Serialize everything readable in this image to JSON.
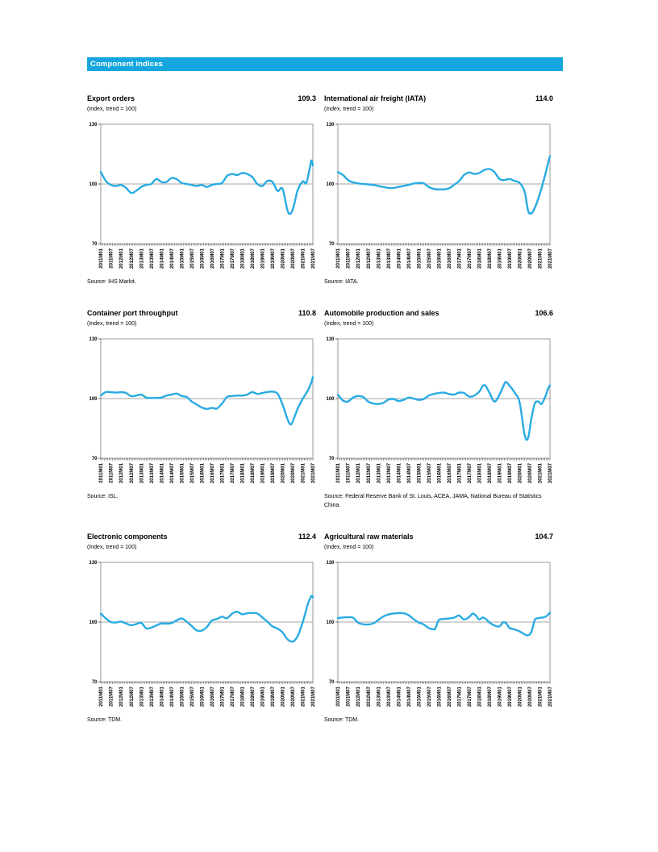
{
  "header": {
    "title": "Component indices",
    "bar_color": "#16A6DF",
    "text_color": "#FFFFFF"
  },
  "colors": {
    "line": "#29ABE2",
    "grid": "#8A8A8A",
    "box": "#9A9A9A",
    "tick": "#3F3F3F"
  },
  "chart_data": {
    "type": "line",
    "axis": {
      "ylim": [
        70,
        130
      ],
      "yticks": [
        130,
        100,
        70
      ],
      "reference_line": 100,
      "x_start": 2011.0,
      "x_end": 2021.5,
      "minor_ticks_monthly": true,
      "x_tick_labels": [
        "2011M01",
        "2011M07",
        "2012M01",
        "2012M07",
        "2013M01",
        "2013M07",
        "2014M01",
        "2014M07",
        "2015M01",
        "2015M07",
        "2016M01",
        "2016M07",
        "2017M01",
        "2017M07",
        "2018M01",
        "2018M07",
        "2019M01",
        "2019M07",
        "2020M01",
        "2020M07",
        "2021M01",
        "2021M07"
      ]
    },
    "charts": [
      {
        "title": "Export orders",
        "value": "109.3",
        "subtitle": "(Index, trend = 100)",
        "source": "Source:  IHS Markit.",
        "x": [
          2011.0,
          2011.25,
          2011.5,
          2011.75,
          2012.0,
          2012.25,
          2012.5,
          2012.75,
          2013.0,
          2013.25,
          2013.5,
          2013.75,
          2014.0,
          2014.25,
          2014.5,
          2014.75,
          2015.0,
          2015.25,
          2015.5,
          2015.75,
          2016.0,
          2016.25,
          2016.5,
          2016.75,
          2017.0,
          2017.25,
          2017.5,
          2017.75,
          2018.0,
          2018.25,
          2018.5,
          2018.75,
          2019.0,
          2019.25,
          2019.5,
          2019.75,
          2020.0,
          2020.25,
          2020.42,
          2020.58,
          2020.75,
          2021.0,
          2021.17,
          2021.33,
          2021.42,
          2021.5
        ],
        "y": [
          106,
          101.5,
          99.5,
          99,
          99.5,
          98,
          95.5,
          96.5,
          98.5,
          99.5,
          100,
          102.5,
          101,
          101,
          103,
          102.5,
          100.5,
          100,
          99.5,
          99,
          99.5,
          98.5,
          99.5,
          100,
          100.5,
          104,
          105,
          104.5,
          105.5,
          105,
          103.5,
          100,
          99,
          101.5,
          101,
          96.5,
          97.5,
          86.5,
          85.3,
          90,
          97,
          101.3,
          100.4,
          107,
          111.8,
          109.3
        ]
      },
      {
        "title": "International air freight (IATA)",
        "value": "114.0",
        "subtitle": "(Index, trend = 100)",
        "source": "Source: IATA.",
        "x": [
          2011.0,
          2011.25,
          2011.5,
          2011.75,
          2012.0,
          2012.25,
          2012.5,
          2012.75,
          2013.0,
          2013.25,
          2013.5,
          2013.75,
          2014.0,
          2014.25,
          2014.5,
          2014.75,
          2015.0,
          2015.25,
          2015.5,
          2015.75,
          2016.0,
          2016.25,
          2016.5,
          2016.75,
          2017.0,
          2017.25,
          2017.5,
          2017.75,
          2018.0,
          2018.25,
          2018.5,
          2018.75,
          2019.0,
          2019.25,
          2019.5,
          2019.75,
          2020.0,
          2020.25,
          2020.42,
          2020.58,
          2020.75,
          2021.0,
          2021.25,
          2021.42,
          2021.5
        ],
        "y": [
          106,
          104.5,
          102,
          100.8,
          100.3,
          100,
          99.8,
          99.5,
          99,
          98.5,
          98,
          98,
          98.5,
          99,
          99.5,
          100.2,
          100.5,
          100.3,
          98.5,
          97.5,
          97.3,
          97.3,
          97.8,
          99.5,
          101.5,
          104.5,
          105.8,
          105,
          105.5,
          107,
          107.5,
          106,
          102.5,
          102,
          102.5,
          101.5,
          100.5,
          96,
          86.5,
          85.3,
          88,
          95,
          104,
          111,
          114
        ]
      },
      {
        "title": "Container port throughput",
        "value": "110.8",
        "subtitle": "(Index, trend = 100)",
        "source": "Source: ISL.",
        "x": [
          2011.0,
          2011.25,
          2011.5,
          2011.75,
          2012.0,
          2012.25,
          2012.5,
          2012.75,
          2013.0,
          2013.25,
          2013.5,
          2013.75,
          2014.0,
          2014.25,
          2014.5,
          2014.75,
          2015.0,
          2015.25,
          2015.5,
          2015.75,
          2016.0,
          2016.25,
          2016.5,
          2016.75,
          2017.0,
          2017.25,
          2017.5,
          2017.75,
          2018.0,
          2018.25,
          2018.5,
          2018.75,
          2019.0,
          2019.25,
          2019.5,
          2019.75,
          2020.0,
          2020.25,
          2020.42,
          2020.58,
          2020.75,
          2021.0,
          2021.25,
          2021.42,
          2021.5
        ],
        "y": [
          101.5,
          103.3,
          103.2,
          103,
          103.2,
          102.8,
          101.2,
          101.5,
          102,
          100.5,
          100.3,
          100.3,
          100.5,
          101.5,
          102,
          102.5,
          101.3,
          100.8,
          98.5,
          97,
          95.5,
          94.8,
          95.3,
          95,
          97.5,
          100.8,
          101.3,
          101.5,
          101.5,
          102,
          103.3,
          102.3,
          102.8,
          103.3,
          103.5,
          102.5,
          97,
          89.5,
          87,
          90.5,
          95,
          100,
          104,
          108,
          110.8
        ]
      },
      {
        "title": "Automobile production and sales",
        "value": "106.6",
        "subtitle": "(Index, trend = 100)",
        "source": "Source: Federal Reserve Bank of St. Louis, ACEA, JAMA, National Bureau of Statistics China.",
        "x": [
          2011.0,
          2011.25,
          2011.5,
          2011.75,
          2012.0,
          2012.25,
          2012.5,
          2012.75,
          2013.0,
          2013.25,
          2013.5,
          2013.75,
          2014.0,
          2014.25,
          2014.5,
          2014.75,
          2015.0,
          2015.25,
          2015.5,
          2015.75,
          2016.0,
          2016.25,
          2016.5,
          2016.75,
          2017.0,
          2017.25,
          2017.5,
          2017.75,
          2018.0,
          2018.25,
          2018.5,
          2018.75,
          2019.0,
          2019.25,
          2019.33,
          2019.5,
          2019.75,
          2020.0,
          2020.25,
          2020.42,
          2020.58,
          2020.75,
          2020.92,
          2021.08,
          2021.25,
          2021.42,
          2021.5
        ],
        "y": [
          102,
          99,
          98.5,
          100.5,
          101.3,
          100.8,
          98.5,
          97.5,
          97.3,
          97.8,
          99.5,
          99.8,
          98.8,
          99.3,
          100.5,
          100,
          99.3,
          99.8,
          101.5,
          102.3,
          102.8,
          103,
          102.3,
          102,
          103,
          102.8,
          101,
          101.5,
          103.5,
          106.8,
          103,
          98.5,
          102,
          107.5,
          108.3,
          106.5,
          103,
          98,
          81.5,
          80.3,
          90,
          97.5,
          98.5,
          97.3,
          100.5,
          105.3,
          106.6
        ]
      },
      {
        "title": "Electronic components",
        "value": "112.4",
        "subtitle": "(Index, trend = 100)",
        "source": "Source:  TDM.",
        "x": [
          2011.0,
          2011.25,
          2011.5,
          2011.75,
          2012.0,
          2012.25,
          2012.5,
          2012.75,
          2013.0,
          2013.25,
          2013.5,
          2013.75,
          2014.0,
          2014.25,
          2014.5,
          2014.75,
          2015.0,
          2015.25,
          2015.5,
          2015.75,
          2016.0,
          2016.25,
          2016.5,
          2016.75,
          2017.0,
          2017.25,
          2017.5,
          2017.75,
          2018.0,
          2018.25,
          2018.5,
          2018.75,
          2019.0,
          2019.25,
          2019.5,
          2019.75,
          2020.0,
          2020.25,
          2020.5,
          2020.75,
          2021.0,
          2021.25,
          2021.42,
          2021.5
        ],
        "y": [
          104.3,
          101.8,
          100,
          99.8,
          100.2,
          99.3,
          98.4,
          99,
          99.6,
          96.8,
          97.2,
          98.3,
          99.3,
          99.2,
          99.5,
          100.8,
          101.8,
          100.2,
          98,
          95.8,
          95.7,
          97.5,
          100.8,
          101.5,
          102.7,
          101.9,
          104.2,
          105.2,
          103.9,
          104.4,
          104.6,
          104.3,
          102.3,
          100.2,
          97.8,
          96.7,
          94.8,
          91.3,
          90.2,
          93,
          100,
          109,
          113,
          112.4
        ]
      },
      {
        "title": "Agricultural raw materials",
        "value": "104.7",
        "subtitle": "(Index, trend = 100)",
        "source": "Source: TDM.",
        "x": [
          2011.0,
          2011.25,
          2011.5,
          2011.75,
          2012.0,
          2012.25,
          2012.5,
          2012.75,
          2013.0,
          2013.25,
          2013.5,
          2013.75,
          2014.0,
          2014.25,
          2014.5,
          2014.75,
          2015.0,
          2015.25,
          2015.5,
          2015.75,
          2015.83,
          2016.0,
          2016.25,
          2016.5,
          2016.75,
          2017.0,
          2017.25,
          2017.5,
          2017.67,
          2017.83,
          2018.0,
          2018.17,
          2018.33,
          2018.5,
          2018.75,
          2019.0,
          2019.17,
          2019.33,
          2019.5,
          2019.75,
          2020.0,
          2020.25,
          2020.42,
          2020.58,
          2020.75,
          2020.92,
          2021.17,
          2021.33,
          2021.5
        ],
        "y": [
          102,
          102.3,
          102.4,
          102.2,
          99.7,
          98.9,
          98.8,
          99.3,
          101,
          102.8,
          103.8,
          104.3,
          104.5,
          104.4,
          103.5,
          101.5,
          99.8,
          98.8,
          97,
          96.3,
          96.8,
          101,
          101.5,
          101.8,
          102.2,
          103.3,
          101.3,
          102.5,
          104.3,
          103.3,
          101.3,
          102.3,
          101.5,
          99.8,
          98.3,
          97.8,
          99.8,
          99.5,
          97,
          96.3,
          95.3,
          93.8,
          93.3,
          95,
          101,
          102,
          102.3,
          103,
          104.7
        ]
      }
    ]
  }
}
